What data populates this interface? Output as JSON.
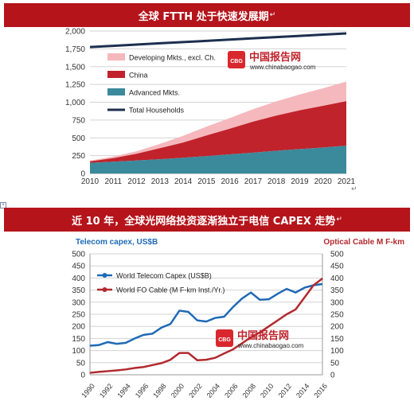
{
  "colors": {
    "banner": "#b5141b",
    "pink": "#f5b8bd",
    "china": "#c0232b",
    "advanced": "#3a8a9c",
    "households": "#1c2f4f",
    "capex_blue": "#1f6ab5",
    "cable_red": "#b02a2f"
  },
  "paragraph_mark": "↵",
  "watermark": {
    "badge": "CBG",
    "name": "中国报告网",
    "url": "www.chinabaogao.com"
  },
  "banner1": {
    "title": "全球 FTTH 处于快速发展期"
  },
  "banner2": {
    "title": "近 10 年，全球光网络投资逐渐独立于电信 CAPEX 走势"
  },
  "chart_data": [
    {
      "type": "area",
      "title": "全球 FTTH 处于快速发展期",
      "x": [
        2010,
        2011,
        2012,
        2013,
        2014,
        2015,
        2016,
        2017,
        2018,
        2019,
        2020,
        2021
      ],
      "ylim": [
        0,
        2000
      ],
      "yticks": [
        0,
        250,
        500,
        750,
        1000,
        1250,
        1500,
        1750,
        2000
      ],
      "grid": true,
      "legend": "top-left",
      "stacked": true,
      "series": [
        {
          "name": "Advanced Mkts.",
          "kind": "area",
          "values": [
            148,
            165,
            182,
            200,
            220,
            243,
            268,
            292,
            318,
            342,
            365,
            390
          ]
        },
        {
          "name": "China",
          "kind": "area",
          "values": [
            22,
            50,
            95,
            155,
            215,
            290,
            360,
            435,
            495,
            545,
            585,
            625
          ]
        },
        {
          "name": "Developing Mkts., excl. Ch.",
          "kind": "area",
          "values": [
            12,
            22,
            35,
            60,
            95,
            125,
            150,
            175,
            200,
            222,
            245,
            275
          ]
        },
        {
          "name": "Total Households",
          "kind": "line",
          "values": [
            1775,
            1792,
            1810,
            1828,
            1845,
            1862,
            1880,
            1898,
            1915,
            1932,
            1950,
            1967
          ]
        }
      ]
    },
    {
      "type": "line",
      "title": "近 10 年，全球光网络投资逐渐独立于电信 CAPEX 走势",
      "ylabel_left": "Telecom capex, US$B",
      "ylabel_right": "Optical Cable M F-km",
      "x": [
        1990,
        1991,
        1992,
        1993,
        1994,
        1995,
        1996,
        1997,
        1998,
        1999,
        2000,
        2001,
        2002,
        2003,
        2004,
        2005,
        2006,
        2007,
        2008,
        2009,
        2010,
        2011,
        2012,
        2013,
        2014,
        2015,
        2016
      ],
      "xticks": [
        1990,
        1992,
        1994,
        1996,
        1998,
        2000,
        2002,
        2004,
        2006,
        2008,
        2010,
        2012,
        2014,
        2016
      ],
      "ylim_left": [
        0,
        500
      ],
      "ylim_right": [
        0,
        500
      ],
      "yticks": [
        0,
        50,
        100,
        150,
        200,
        250,
        300,
        350,
        400,
        450,
        500
      ],
      "grid": true,
      "legend": "top-left",
      "series": [
        {
          "name": "World Telecom Capex (US$B)",
          "axis": "left",
          "values": [
            120,
            123,
            135,
            128,
            132,
            150,
            165,
            170,
            195,
            210,
            265,
            260,
            225,
            220,
            235,
            240,
            280,
            315,
            340,
            310,
            312,
            335,
            355,
            340,
            360,
            370,
            375
          ]
        },
        {
          "name": "World FO Cable (M F-km Inst./Yr.)",
          "axis": "right",
          "values": [
            8,
            12,
            15,
            18,
            22,
            28,
            32,
            40,
            48,
            62,
            90,
            90,
            60,
            62,
            70,
            88,
            105,
            130,
            155,
            175,
            200,
            225,
            250,
            270,
            320,
            370,
            398
          ]
        }
      ]
    }
  ]
}
